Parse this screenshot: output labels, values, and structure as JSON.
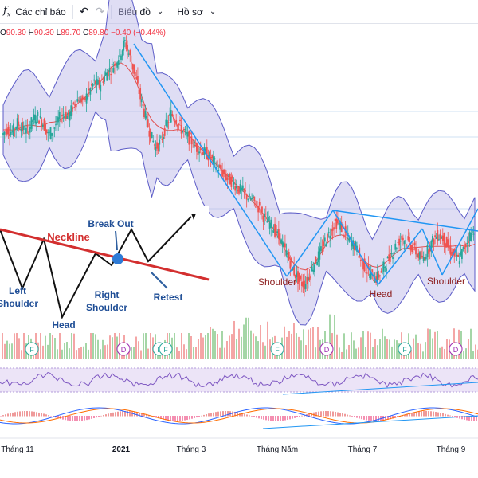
{
  "toolbar": {
    "indicators_label": "Các chỉ báo",
    "chart_label": "Biểu đồ",
    "profile_label": "Hồ sơ"
  },
  "ohlc": {
    "open_label": "O",
    "open": "90.30",
    "high_label": "H",
    "high": "90.30",
    "low_label": "L",
    "low": "89.70",
    "close_label": "C",
    "close": "89.80",
    "change": "−0.40 (−0.44%)"
  },
  "colors": {
    "up": "#26a69a",
    "down": "#ef5350",
    "trend": "#2196f3",
    "neckline": "#d32f2f",
    "band_fill": "#b7b3e6",
    "band_line": "#5c5cc7",
    "label_red": "#8b1a1a",
    "label_blue": "#1f4e96"
  },
  "chart_data": {
    "type": "candlestick",
    "x_tick_labels": [
      "Tháng 11",
      "2021",
      "Tháng 3",
      "Tháng Năm",
      "Tháng 7",
      "Tháng 9"
    ],
    "annotations": [
      "Shoulder",
      "Head",
      "Shoulder"
    ],
    "event_markers": [
      "F",
      "D",
      "F",
      "F",
      "F",
      "D",
      "F",
      "D"
    ],
    "close_series": [
      78,
      80,
      79,
      82,
      80,
      79,
      83,
      84,
      82,
      78,
      80,
      83,
      85,
      84,
      88,
      90,
      89,
      92,
      95,
      94,
      97,
      99,
      101,
      104,
      108,
      103,
      97,
      90,
      84,
      78,
      74,
      76,
      81,
      85,
      83,
      80,
      78,
      76,
      74,
      73,
      72,
      70,
      68,
      66,
      64,
      63,
      61,
      60,
      58,
      57,
      55,
      52,
      50,
      48,
      45,
      42,
      38,
      34,
      31,
      30,
      33,
      37,
      40,
      44,
      47,
      50,
      49,
      46,
      44,
      42,
      38,
      35,
      33,
      32,
      34,
      37,
      40,
      43,
      45,
      44,
      42,
      40,
      38,
      41,
      44,
      46,
      45,
      42,
      40,
      38,
      41,
      45,
      48
    ]
  },
  "inset": {
    "labels": {
      "neckline": "Neckline",
      "breakout": "Break Out",
      "left_shoulder_1": "Left",
      "left_shoulder_2": "Shoulder",
      "head": "Head",
      "right_shoulder_1": "Right",
      "right_shoulder_2": "Shoulder",
      "retest": "Retest"
    }
  }
}
